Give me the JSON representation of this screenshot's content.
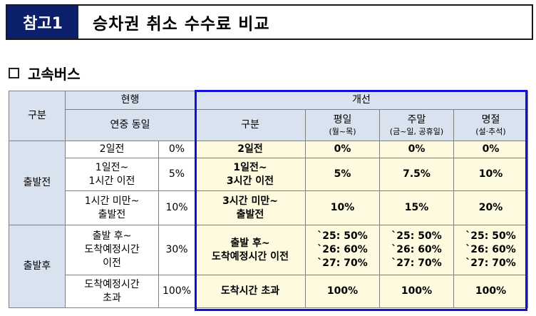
{
  "title": {
    "tag": "참고1",
    "text": "승차권 취소 수수료 비교"
  },
  "section": {
    "title": "고속버스"
  },
  "table": {
    "header": {
      "category": "구분",
      "current": "현행",
      "current_sub": "연중 동일",
      "improved": "개선",
      "improved_category": "구분",
      "weekday": "평일",
      "weekday_sub": "(월~목)",
      "weekend": "주말",
      "weekend_sub": "(금~일, 공휴일)",
      "holiday": "명절",
      "holiday_sub": "(설·추석)"
    },
    "groups": {
      "before": "출발전",
      "after": "출발후"
    },
    "rows": [
      {
        "current_period": [
          "2일전"
        ],
        "current_rate": "0%",
        "new_period": [
          "2일전"
        ],
        "weekday": [
          "0%"
        ],
        "weekend": [
          "0%"
        ],
        "holiday": [
          "0%"
        ]
      },
      {
        "current_period": [
          "1일전~",
          "1시간 이전"
        ],
        "current_rate": "5%",
        "new_period": [
          "1일전~",
          "3시간 이전"
        ],
        "weekday": [
          "5%"
        ],
        "weekend": [
          "7.5%"
        ],
        "holiday": [
          "10%"
        ]
      },
      {
        "current_period": [
          "1시간 미만~",
          "출발전"
        ],
        "current_rate": "10%",
        "new_period": [
          "3시간 미만~",
          "출발전"
        ],
        "weekday": [
          "10%"
        ],
        "weekend": [
          "15%"
        ],
        "holiday": [
          "20%"
        ]
      },
      {
        "current_period": [
          "출발 후~",
          "도착예정시간",
          "이전"
        ],
        "current_rate": "30%",
        "new_period": [
          "출발 후~",
          "도착예정시간 이전"
        ],
        "weekday": [
          "`25: 50%",
          "`26: 60%",
          "`27: 70%"
        ],
        "weekend": [
          "`25: 50%",
          "`26: 60%",
          "`27: 70%"
        ],
        "holiday": [
          "`25: 50%",
          "`26: 60%",
          "`27: 70%"
        ]
      },
      {
        "current_period": [
          "도착예정시간",
          "초과"
        ],
        "current_rate": "100%",
        "new_period": [
          "도착시간 초과"
        ],
        "weekday": [
          "100%"
        ],
        "weekend": [
          "100%"
        ],
        "holiday": [
          "100%"
        ]
      }
    ]
  },
  "colors": {
    "title_tag_bg": "#0b1f6b",
    "header_bg": "#d9e2ef",
    "improved_bg": "#fdfadf",
    "highlight_border": "#1010d8"
  }
}
